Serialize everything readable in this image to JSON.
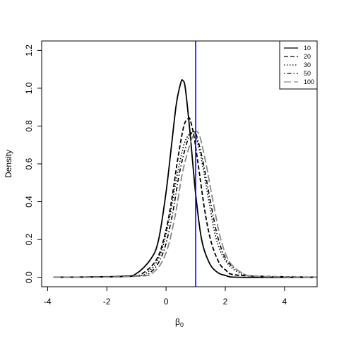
{
  "chart_data": {
    "type": "line",
    "title": "",
    "xlabel": "β",
    "xlabel_subscript": "0",
    "ylabel": "Density",
    "xlim": [
      -4.2,
      5.1
    ],
    "ylim": [
      -0.05,
      1.25
    ],
    "x_ticks": [
      -4,
      -2,
      0,
      2,
      4
    ],
    "y_ticks": [
      0.0,
      0.2,
      0.4,
      0.6,
      0.8,
      1.0,
      1.2
    ],
    "x_tick_labels": [
      "-4",
      "-2",
      "0",
      "2",
      "4"
    ],
    "y_tick_labels": [
      "0.0",
      "0.2",
      "0.4",
      "0.6",
      "0.8",
      "1.0",
      "1.2"
    ],
    "grid": false,
    "legend_position": "top-right",
    "reference_line": {
      "x": 1.0,
      "color": "#0000ff"
    },
    "series": [
      {
        "name": "10",
        "color": "#000000",
        "dash": "solid",
        "width": 1.8,
        "x": [
          -3.8,
          -1.5,
          -1.0,
          -0.5,
          -0.25,
          0.0,
          0.2,
          0.35,
          0.5,
          0.57,
          0.65,
          0.8,
          1.0,
          1.2,
          1.45,
          1.7,
          2.0,
          2.5,
          5.1
        ],
        "y": [
          0.0,
          0.005,
          0.02,
          0.1,
          0.2,
          0.45,
          0.72,
          0.92,
          1.03,
          1.04,
          1.0,
          0.78,
          0.44,
          0.2,
          0.08,
          0.03,
          0.01,
          0.0,
          0.0
        ]
      },
      {
        "name": "20",
        "color": "#000000",
        "dash": "dashed",
        "width": 1.8,
        "x": [
          -3.8,
          -1.3,
          -0.8,
          -0.3,
          0.0,
          0.2,
          0.4,
          0.6,
          0.75,
          0.82,
          0.95,
          1.1,
          1.3,
          1.5,
          1.75,
          2.0,
          2.5,
          5.1
        ],
        "y": [
          0.0,
          0.005,
          0.02,
          0.1,
          0.25,
          0.42,
          0.63,
          0.8,
          0.84,
          0.83,
          0.74,
          0.58,
          0.36,
          0.2,
          0.09,
          0.04,
          0.01,
          0.0
        ]
      },
      {
        "name": "30",
        "color": "#000000",
        "dash": "dotted",
        "width": 1.6,
        "x": [
          -3.8,
          -1.2,
          -0.6,
          -0.2,
          0.1,
          0.35,
          0.6,
          0.8,
          0.9,
          1.0,
          1.2,
          1.45,
          1.7,
          2.0,
          2.4,
          3.0,
          5.1
        ],
        "y": [
          0.0,
          0.005,
          0.03,
          0.12,
          0.3,
          0.52,
          0.7,
          0.76,
          0.77,
          0.75,
          0.62,
          0.4,
          0.2,
          0.09,
          0.03,
          0.005,
          0.0
        ]
      },
      {
        "name": "50",
        "color": "#000000",
        "dash": "dotdash",
        "width": 1.6,
        "x": [
          -3.8,
          -1.1,
          -0.5,
          -0.1,
          0.2,
          0.45,
          0.7,
          0.85,
          0.95,
          1.05,
          1.25,
          1.5,
          1.75,
          2.05,
          2.5,
          3.0,
          5.1
        ],
        "y": [
          0.0,
          0.005,
          0.03,
          0.13,
          0.32,
          0.55,
          0.71,
          0.76,
          0.77,
          0.74,
          0.61,
          0.4,
          0.21,
          0.09,
          0.03,
          0.005,
          0.0
        ]
      },
      {
        "name": "100",
        "color": "#888888",
        "dash": "longdash",
        "width": 1.8,
        "x": [
          -3.8,
          -1.0,
          -0.4,
          0.0,
          0.3,
          0.55,
          0.8,
          0.95,
          1.05,
          1.15,
          1.35,
          1.6,
          1.85,
          2.15,
          2.6,
          3.1,
          5.1
        ],
        "y": [
          0.0,
          0.005,
          0.03,
          0.13,
          0.32,
          0.55,
          0.7,
          0.76,
          0.77,
          0.74,
          0.6,
          0.39,
          0.2,
          0.08,
          0.02,
          0.005,
          0.0
        ]
      }
    ]
  }
}
